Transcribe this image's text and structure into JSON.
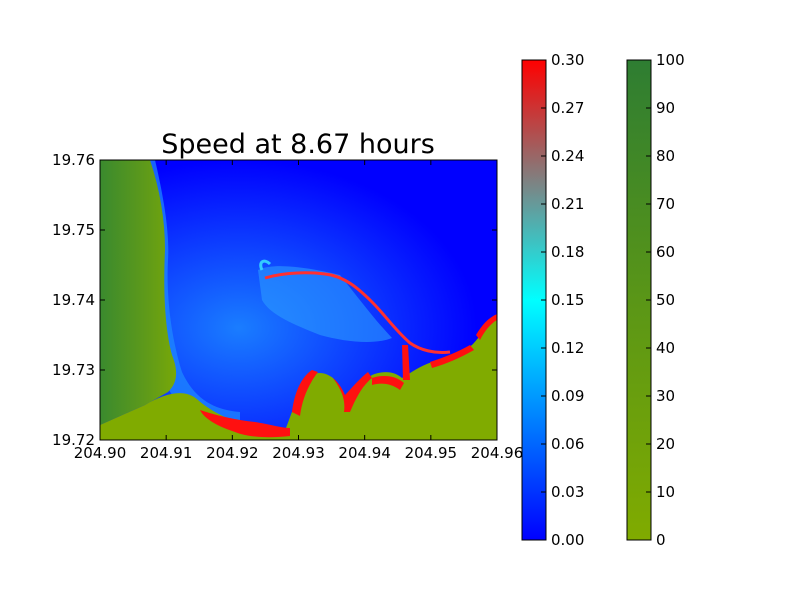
{
  "chart_data": {
    "type": "heatmap",
    "title": "Speed at 8.67 hours",
    "xlabel": "",
    "ylabel": "",
    "xlim": [
      204.9,
      204.96
    ],
    "ylim": [
      19.72,
      19.76
    ],
    "x_ticks": [
      "204.90",
      "204.91",
      "204.92",
      "204.93",
      "204.94",
      "204.95",
      "204.96"
    ],
    "y_ticks": [
      "19.72",
      "19.73",
      "19.74",
      "19.75",
      "19.76"
    ],
    "colorbars": [
      {
        "name": "speed",
        "range": [
          0.0,
          0.3
        ],
        "ticks": [
          "0.00",
          "0.03",
          "0.06",
          "0.09",
          "0.12",
          "0.15",
          "0.18",
          "0.21",
          "0.24",
          "0.27",
          "0.30"
        ],
        "colors": [
          "#0000ff",
          "#0080ff",
          "#00ffff",
          "#808080",
          "#ff0000"
        ]
      },
      {
        "name": "topography",
        "range": [
          0,
          100
        ],
        "ticks": [
          "0",
          "10",
          "20",
          "30",
          "40",
          "50",
          "60",
          "70",
          "80",
          "90",
          "100"
        ],
        "colors": [
          "#80ab00",
          "#2e7d32"
        ]
      }
    ],
    "grid": false,
    "legend": "none"
  }
}
